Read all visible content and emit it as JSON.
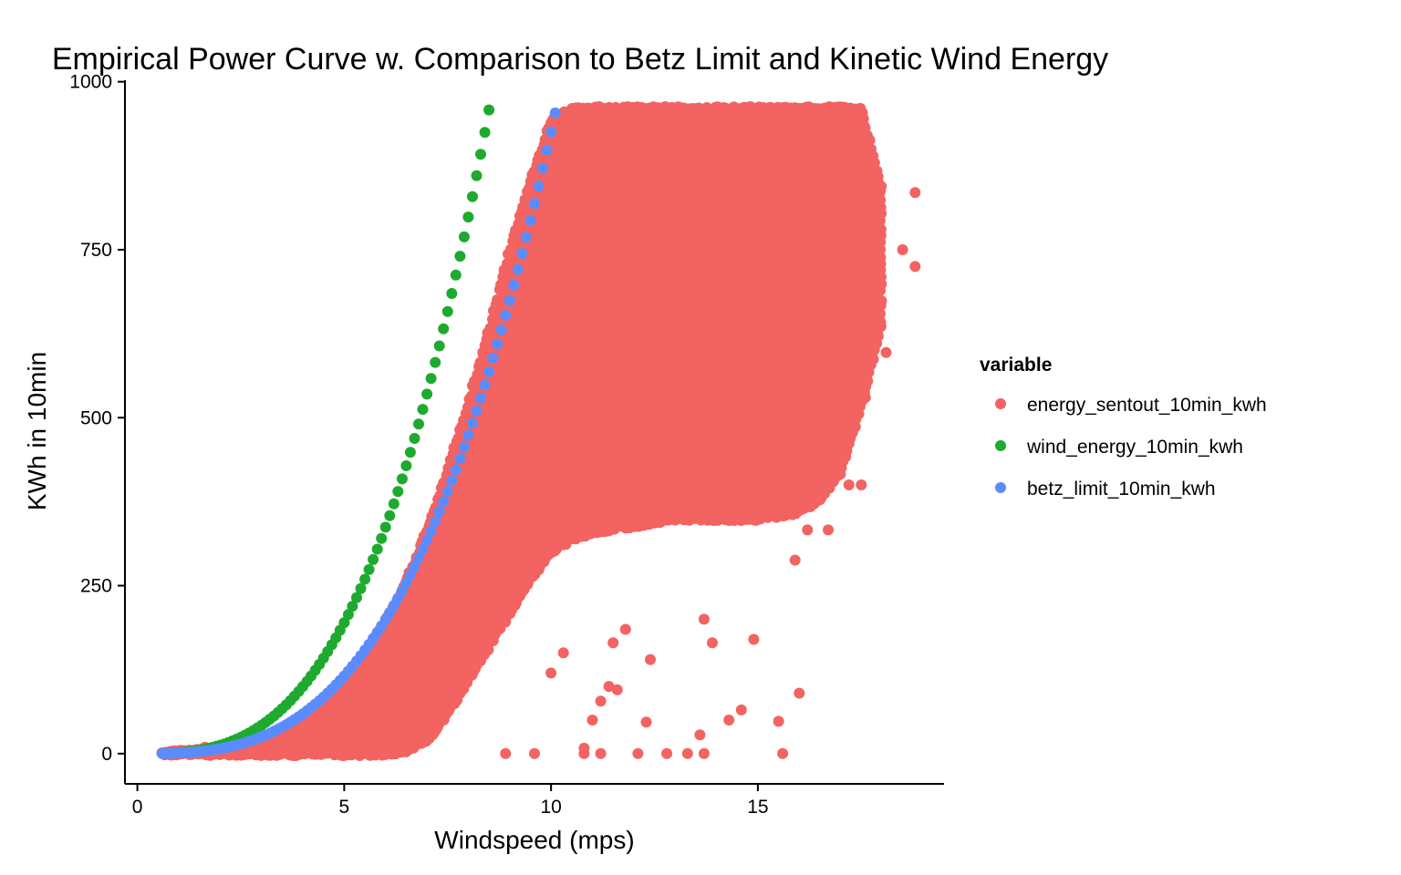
{
  "chart_data": {
    "type": "scatter",
    "title": "Empirical Power Curve w. Comparison to Betz Limit and Kinetic Wind Energy",
    "xlabel": "Windspeed (mps)",
    "ylabel": "KWh in 10min",
    "xlim": [
      -0.3,
      19.5
    ],
    "ylim": [
      -45,
      1005
    ],
    "x_ticks": [
      0,
      5,
      10,
      15
    ],
    "y_ticks": [
      0,
      250,
      500,
      750,
      1000
    ],
    "grid": false,
    "legend": {
      "title": "variable",
      "position": "right"
    },
    "series": [
      {
        "name": "energy_sentout_10min_kwh",
        "color": "#F26361",
        "description_points": "dense cloud",
        "envelope": {
          "x": [
            0.6,
            3.0,
            4.0,
            5.0,
            5.5,
            6.0,
            6.5,
            7.0,
            7.5,
            8.0,
            8.5,
            9.0,
            9.5,
            10.0,
            10.5,
            11.0,
            12.0,
            13.0,
            14.0,
            15.0,
            16.0,
            16.5,
            17.0,
            17.5,
            18.0
          ],
          "lower": [
            0,
            0,
            0,
            0,
            0,
            0,
            5,
            20,
            60,
            110,
            160,
            210,
            260,
            300,
            320,
            330,
            340,
            350,
            350,
            350,
            360,
            380,
            420,
            520,
            640
          ],
          "upper": [
            0,
            15,
            45,
            100,
            145,
            195,
            255,
            330,
            420,
            520,
            630,
            750,
            850,
            940,
            960,
            960,
            960,
            960,
            960,
            960,
            960,
            960,
            960,
            960,
            840
          ]
        },
        "outliers": [
          [
            8.9,
            0
          ],
          [
            9.6,
            0
          ],
          [
            10.8,
            0
          ],
          [
            11.2,
            0
          ],
          [
            12.1,
            0
          ],
          [
            12.8,
            0
          ],
          [
            13.3,
            0
          ],
          [
            13.7,
            0
          ],
          [
            15.6,
            0
          ],
          [
            10.8,
            8
          ],
          [
            13.6,
            28
          ],
          [
            14.3,
            50
          ],
          [
            15.5,
            48
          ],
          [
            14.6,
            65
          ],
          [
            11.0,
            50
          ],
          [
            11.2,
            78
          ],
          [
            11.6,
            95
          ],
          [
            12.3,
            47
          ],
          [
            11.4,
            100
          ],
          [
            16.0,
            90
          ],
          [
            12.4,
            140
          ],
          [
            13.9,
            165
          ],
          [
            14.9,
            170
          ],
          [
            11.5,
            165
          ],
          [
            11.8,
            185
          ],
          [
            13.7,
            200
          ],
          [
            10.0,
            120
          ],
          [
            10.3,
            150
          ],
          [
            15.9,
            288
          ],
          [
            17.8,
            660
          ],
          [
            17.8,
            695
          ],
          [
            18.1,
            597
          ],
          [
            18.5,
            750
          ],
          [
            18.8,
            725
          ],
          [
            18.8,
            835
          ],
          [
            17.5,
            400
          ],
          [
            17.2,
            400
          ],
          [
            16.7,
            333
          ],
          [
            16.2,
            333
          ],
          [
            17.3,
            560
          ],
          [
            17.6,
            530
          ],
          [
            10.6,
            960
          ],
          [
            11.0,
            945
          ]
        ]
      },
      {
        "name": "wind_energy_10min_kwh",
        "color": "#1EAA2E",
        "formula_k": 1.56,
        "x_range": [
          0.6,
          8.5
        ]
      },
      {
        "name": "betz_limit_10min_kwh",
        "color": "#5A8CFF",
        "formula_k": 0.9255,
        "x_range": [
          0.6,
          10.1
        ]
      }
    ]
  }
}
